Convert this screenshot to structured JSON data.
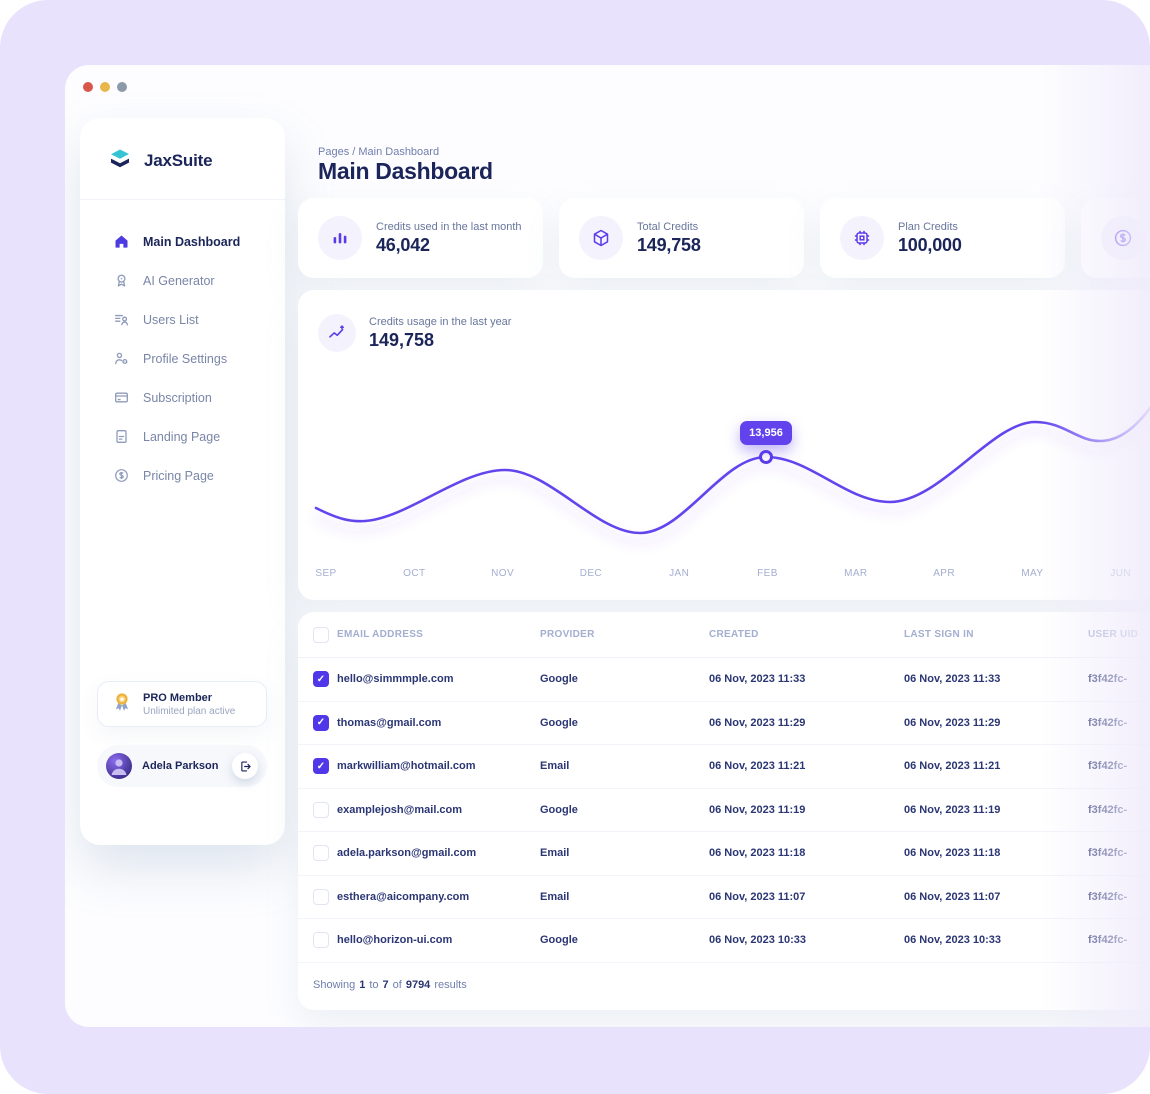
{
  "window": {
    "controls": [
      {
        "name": "close",
        "color": "#D9564A"
      },
      {
        "name": "minimize",
        "color": "#E8B64A"
      },
      {
        "name": "expand",
        "color": "#8C99A8"
      }
    ]
  },
  "sidebar": {
    "brand": "JaxSuite",
    "items": [
      {
        "label": "Main Dashboard",
        "icon": "home-icon",
        "active": true
      },
      {
        "label": "AI Generator",
        "icon": "award-icon",
        "active": false
      },
      {
        "label": "Users List",
        "icon": "users-list-icon",
        "active": false
      },
      {
        "label": "Profile Settings",
        "icon": "profile-settings-icon",
        "active": false
      },
      {
        "label": "Subscription",
        "icon": "subscription-card-icon",
        "active": false
      },
      {
        "label": "Landing Page",
        "icon": "landing-page-icon",
        "active": false
      },
      {
        "label": "Pricing Page",
        "icon": "pricing-dollar-icon",
        "active": false
      }
    ],
    "pro_card": {
      "icon": "medal-icon",
      "title": "PRO Member",
      "subtitle": "Unlimited plan active"
    },
    "user": {
      "name": "Adela Parkson",
      "logout_icon": "logout-icon"
    }
  },
  "header": {
    "breadcrumb": "Pages / Main Dashboard",
    "title": "Main Dashboard"
  },
  "stats": [
    {
      "icon": "bar-chart-icon",
      "label": "Credits used in the last month",
      "value": "46,042"
    },
    {
      "icon": "cube-icon",
      "label": "Total Credits",
      "value": "149,758"
    },
    {
      "icon": "chip-icon",
      "label": "Plan Credits",
      "value": "100,000"
    },
    {
      "icon": "dollar-circle-icon",
      "label": "",
      "value": ""
    }
  ],
  "chart_card": {
    "icon": "trend-icon",
    "label": "Credits usage in the last year",
    "value": "149,758"
  },
  "chart_data": {
    "type": "line",
    "title": "Credits usage in the last year",
    "total": "149,758",
    "x": [
      "SEP",
      "OCT",
      "NOV",
      "DEC",
      "JAN",
      "FEB",
      "MAR",
      "APR",
      "MAY",
      "JUN"
    ],
    "values": [
      8200,
      9500,
      12500,
      7600,
      9300,
      13956,
      10900,
      10600,
      17800,
      16200
    ],
    "highlight": {
      "x": "FEB",
      "value": "13,956"
    },
    "line_color": "#6345EE",
    "grid": false,
    "legend": false,
    "ylabel": "",
    "xlabel": ""
  },
  "table": {
    "columns": [
      "EMAIL ADDRESS",
      "PROVIDER",
      "CREATED",
      "LAST SIGN IN",
      "USER UID"
    ],
    "rows": [
      {
        "email": "hello@simmmple.com",
        "provider": "Google",
        "created": "06 Nov, 2023 11:33",
        "last_sign_in": "06 Nov, 2023 11:33",
        "uid": "f3f42fc-",
        "checked": true
      },
      {
        "email": "thomas@gmail.com",
        "provider": "Google",
        "created": "06 Nov, 2023 11:29",
        "last_sign_in": "06 Nov, 2023 11:29",
        "uid": "f3f42fc-",
        "checked": true
      },
      {
        "email": "markwilliam@hotmail.com",
        "provider": "Email",
        "created": "06 Nov, 2023 11:21",
        "last_sign_in": "06 Nov, 2023 11:21",
        "uid": "f3f42fc-",
        "checked": true
      },
      {
        "email": "examplejosh@mail.com",
        "provider": "Google",
        "created": "06 Nov, 2023 11:19",
        "last_sign_in": "06 Nov, 2023 11:19",
        "uid": "f3f42fc-",
        "checked": false
      },
      {
        "email": "adela.parkson@gmail.com",
        "provider": "Email",
        "created": "06 Nov, 2023 11:18",
        "last_sign_in": "06 Nov, 2023 11:18",
        "uid": "f3f42fc-",
        "checked": false
      },
      {
        "email": "esthera@aicompany.com",
        "provider": "Email",
        "created": "06 Nov, 2023 11:07",
        "last_sign_in": "06 Nov, 2023 11:07",
        "uid": "f3f42fc-",
        "checked": false
      },
      {
        "email": "hello@horizon-ui.com",
        "provider": "Google",
        "created": "06 Nov, 2023 10:33",
        "last_sign_in": "06 Nov, 2023 10:33",
        "uid": "f3f42fc-",
        "checked": false
      }
    ],
    "footer": {
      "prefix": "Showing",
      "from": "1",
      "to_word": "to",
      "to": "7",
      "of_word": "of",
      "total": "9794",
      "suffix": "results"
    }
  },
  "colors": {
    "accent": "#5B3DE8",
    "line": "#6345EE",
    "navy": "#1B2559",
    "muted": "#8F9BBA",
    "lavender_bg": "#E9E2FC",
    "logo_teal": "#35C4D3",
    "medal_gold": "#EDB23C",
    "checkbox": "#5038E8",
    "tooltip_bg": "#6142EC"
  }
}
